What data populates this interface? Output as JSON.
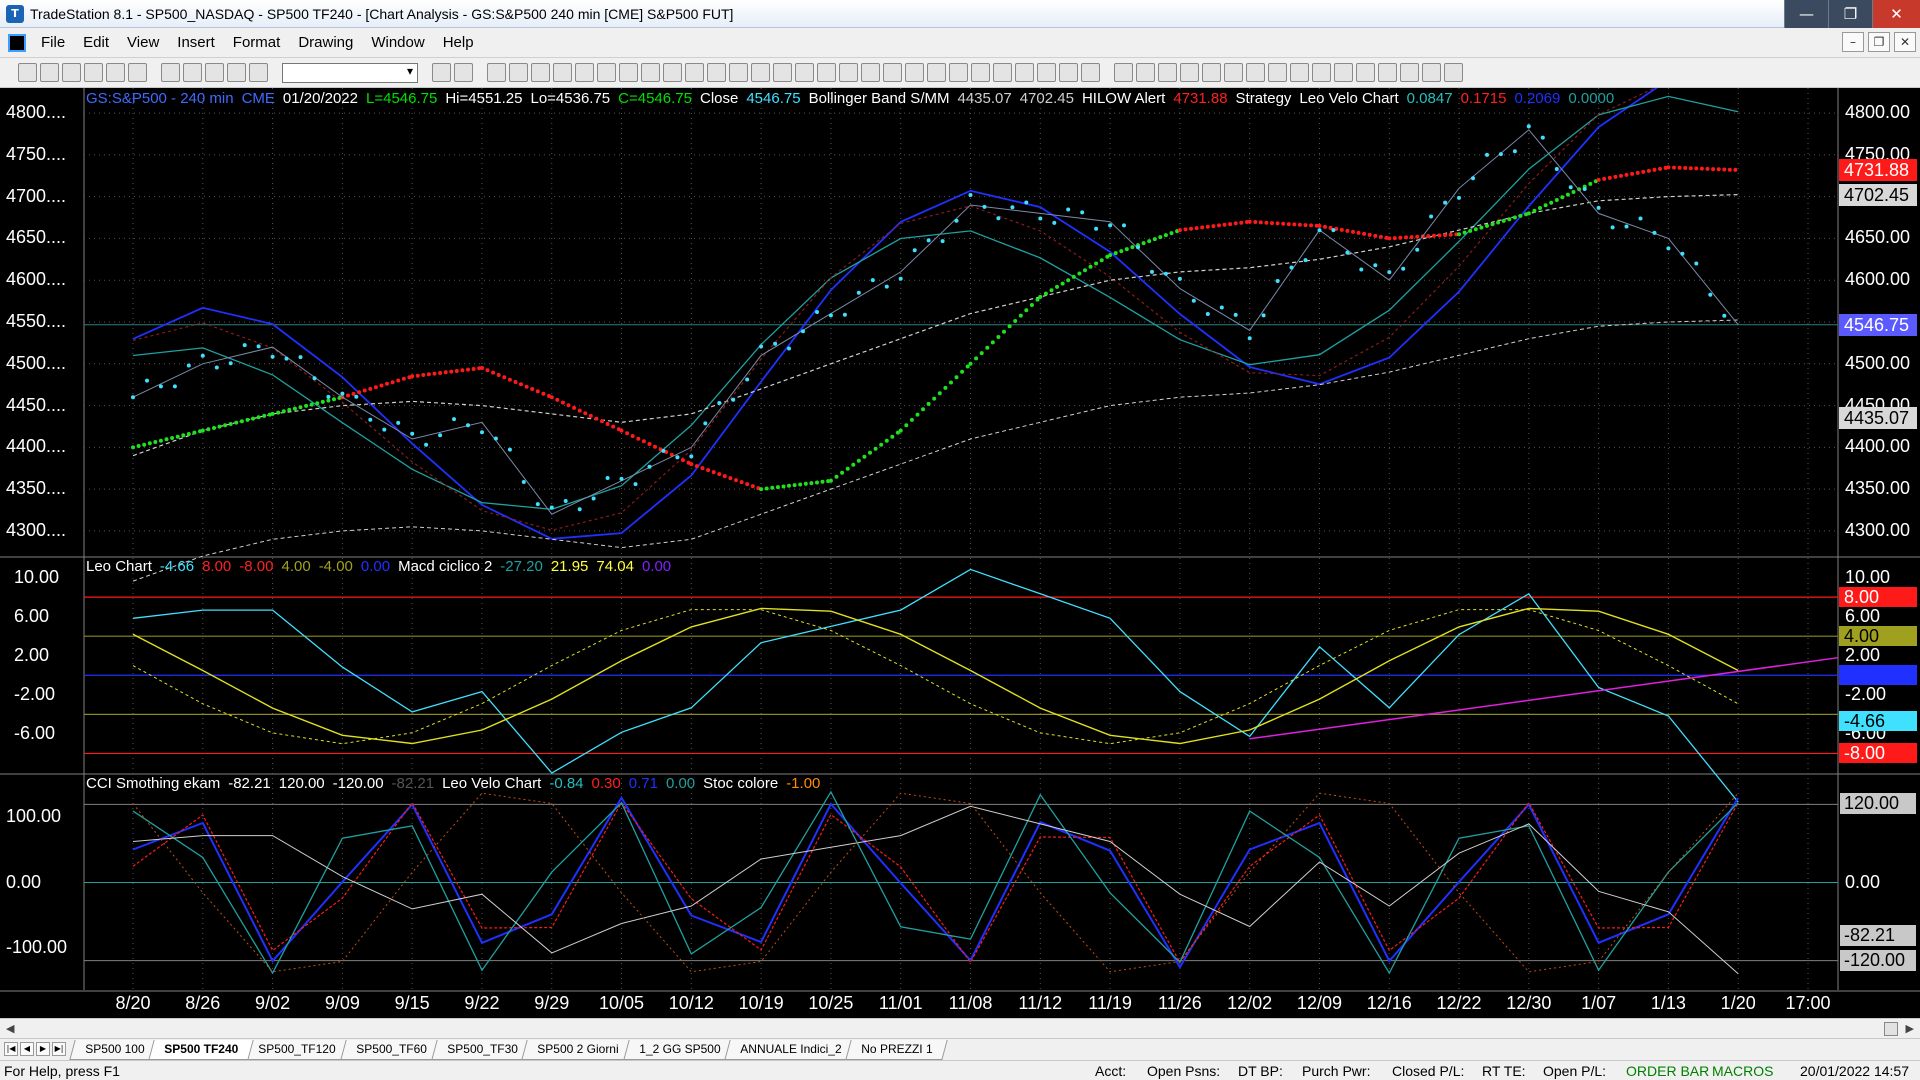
{
  "window": {
    "title": "TradeStation 8.1 - SP500_NASDAQ - SP500 TF240 - [Chart Analysis - GS:S&P500  240 min  [CME] S&P500 FUT]",
    "controls": [
      "—",
      "❐",
      "✕"
    ]
  },
  "menu": {
    "items": [
      "File",
      "Edit",
      "View",
      "Insert",
      "Format",
      "Drawing",
      "Window",
      "Help"
    ]
  },
  "panes": {
    "price": {
      "header": [
        {
          "text": "GS:S&P500 - 240 min",
          "color": "#3d6cff"
        },
        {
          "text": "CME",
          "color": "#3d6cff"
        },
        {
          "text": "01/20/2022",
          "color": "#ffffff"
        },
        {
          "text": "L=4546.75",
          "color": "#00e000"
        },
        {
          "text": "Hi=4551.25",
          "color": "#ffffff"
        },
        {
          "text": "Lo=4536.75",
          "color": "#ffffff"
        },
        {
          "text": "C=4546.75",
          "color": "#00e000"
        },
        {
          "text": "Close",
          "color": "#ffffff"
        },
        {
          "text": "4546.75",
          "color": "#40e0ff"
        },
        {
          "text": "Bollinger Band S/MM",
          "color": "#ffffff"
        },
        {
          "text": "4435.07",
          "color": "#cfcfcf"
        },
        {
          "text": "4702.45",
          "color": "#cfcfcf"
        },
        {
          "text": "HILOW Alert",
          "color": "#ffffff"
        },
        {
          "text": "4731.88",
          "color": "#ff2020"
        },
        {
          "text": "Strategy",
          "color": "#ffffff"
        },
        {
          "text": "Leo Velo Chart",
          "color": "#ffffff"
        },
        {
          "text": "0.0847",
          "color": "#20c0c0"
        },
        {
          "text": "0.1715",
          "color": "#ff2020"
        },
        {
          "text": "0.2069",
          "color": "#2030ff"
        },
        {
          "text": "0.0000",
          "color": "#20a0a0"
        }
      ],
      "left_axis": [
        "4800....",
        "4750....",
        "4700....",
        "4650....",
        "4600....",
        "4550....",
        "4500....",
        "4450....",
        "4400....",
        "4350....",
        "4300...."
      ],
      "right_axis": [
        "4800.00",
        "4750.00",
        "4700.00",
        "4650.00",
        "4600.00",
        "4550.00",
        "4500.00",
        "4450.00",
        "4400.00",
        "4350.00",
        "4300.00"
      ],
      "badges": [
        {
          "text": "4731.88",
          "bg": "#ff1a1a",
          "color": "#ffffff"
        },
        {
          "text": "4702.45",
          "bg": "#d8d8d8",
          "color": "#000000"
        },
        {
          "text": "4546.75",
          "bg": "#5a5aff",
          "color": "#ffffff"
        },
        {
          "text": "4435.07",
          "bg": "#d8d8d8",
          "color": "#000000"
        }
      ]
    },
    "leo": {
      "header": [
        {
          "text": "Leo Chart",
          "color": "#ffffff"
        },
        {
          "text": "-4.66",
          "color": "#40e0ff"
        },
        {
          "text": "8.00",
          "color": "#ff2020"
        },
        {
          "text": "-8.00",
          "color": "#ff2020"
        },
        {
          "text": "4.00",
          "color": "#a0a020"
        },
        {
          "text": "-4.00",
          "color": "#a0a020"
        },
        {
          "text": "0.00",
          "color": "#2030ff"
        },
        {
          "text": "Macd ciclico 2",
          "color": "#ffffff"
        },
        {
          "text": "-27.20",
          "color": "#20a0a0"
        },
        {
          "text": "21.95",
          "color": "#ffff40"
        },
        {
          "text": "74.04",
          "color": "#ffff40"
        },
        {
          "text": "0.00",
          "color": "#8020ff"
        }
      ],
      "left_axis": [
        "10.00",
        "6.00",
        "2.00",
        "-2.00",
        "-6.00"
      ],
      "right_axis": [
        "10.00",
        "6.00",
        "2.00",
        "-2.00",
        "-6.00"
      ],
      "badges": [
        {
          "text": "8.00",
          "bg": "#ff1a1a",
          "color": "#ffffff"
        },
        {
          "text": "4.00",
          "bg": "#a0a020",
          "color": "#000000"
        },
        {
          "text": "0.00",
          "bg": "#2030ff",
          "color": "#2030ff"
        },
        {
          "text": "-4.66",
          "bg": "#40e0ff",
          "color": "#000000"
        },
        {
          "text": "-8.00",
          "bg": "#ff1a1a",
          "color": "#ffffff"
        }
      ]
    },
    "cci": {
      "header": [
        {
          "text": "CCI Smothing ekam",
          "color": "#ffffff"
        },
        {
          "text": "-82.21",
          "color": "#ffffff"
        },
        {
          "text": "120.00",
          "color": "#ffffff"
        },
        {
          "text": "-120.00",
          "color": "#ffffff"
        },
        {
          "text": "-82.21",
          "color": "#555555"
        },
        {
          "text": "Leo Velo Chart",
          "color": "#ffffff"
        },
        {
          "text": "-0.84",
          "color": "#20c0c0"
        },
        {
          "text": "0.30",
          "color": "#ff2020"
        },
        {
          "text": "0.71",
          "color": "#2030ff"
        },
        {
          "text": "0.00",
          "color": "#20a0a0"
        },
        {
          "text": "Stoc colore",
          "color": "#ffffff"
        },
        {
          "text": "-1.00",
          "color": "#ff8c00"
        }
      ],
      "left_axis": [
        "100.00",
        "0.00",
        "-100.00"
      ],
      "right_axis": [
        "120.00",
        "0.00",
        "-82.21",
        "-120.00"
      ]
    }
  },
  "date_axis": [
    "8/20",
    "8/26",
    "9/02",
    "9/09",
    "9/15",
    "9/22",
    "9/29",
    "10/05",
    "10/12",
    "10/19",
    "10/25",
    "11/01",
    "11/08",
    "11/12",
    "11/19",
    "11/26",
    "12/02",
    "12/09",
    "12/16",
    "12/22",
    "12/30",
    "1/07",
    "1/13",
    "1/20",
    "17:00"
  ],
  "tabs": [
    "SP500 100",
    "SP500 TF240",
    "SP500_TF120",
    "SP500_TF60",
    "SP500_TF30",
    "SP500 2 Giorni",
    "1_2 GG SP500",
    "ANNUALE Indici_2",
    "No PREZZI 1"
  ],
  "active_tab": "SP500 TF240",
  "statusbar": {
    "help": "For Help, press F1",
    "acct": "Acct:",
    "open_psns": "Open Psns:",
    "dt_bp": "DT BP:",
    "purch_pwr": "Purch Pwr:",
    "closed_pl": "Closed P/L:",
    "rt_te": "RT TE:",
    "open_pl": "Open P/L:",
    "order_bar": "ORDER BAR",
    "macros": "MACROS",
    "datetime": "20/01/2022 14:57"
  },
  "colors": {
    "price_dots": "#40e0ff",
    "band_red": "#ff1a1a",
    "band_green": "#20e020",
    "ma_white": "#d0d0d0",
    "blue_line": "#2030ff",
    "teal_line": "#20a0a0",
    "yellow_line": "#e0e020",
    "magenta_trend": "#e020e0"
  },
  "chart_data": {
    "type": "line",
    "title": "GS:S&P500 - 240 min",
    "x": [
      "8/20",
      "8/26",
      "9/02",
      "9/09",
      "9/15",
      "9/22",
      "9/29",
      "10/05",
      "10/12",
      "10/19",
      "10/25",
      "11/01",
      "11/08",
      "11/12",
      "11/19",
      "11/26",
      "12/02",
      "12/09",
      "12/16",
      "12/22",
      "12/30",
      "1/07",
      "1/13",
      "1/20"
    ],
    "series": [
      {
        "name": "Close",
        "values": [
          4460,
          4500,
          4520,
          4460,
          4410,
          4430,
          4320,
          4360,
          4400,
          4510,
          4560,
          4610,
          4690,
          4680,
          4670,
          4590,
          4540,
          4660,
          4600,
          4710,
          4780,
          4680,
          4650,
          4546.75
        ]
      },
      {
        "name": "Bollinger Band S/MM",
        "values": [
          4390,
          4420,
          4440,
          4450,
          4455,
          4450,
          4440,
          4430,
          4440,
          4470,
          4500,
          4530,
          4560,
          4580,
          4600,
          4610,
          4615,
          4625,
          4640,
          4660,
          4680,
          4695,
          4700,
          4702.45
        ]
      },
      {
        "name": "HILOW Alert",
        "values": [
          4400,
          4420,
          4440,
          4460,
          4485,
          4495,
          4460,
          4420,
          4380,
          4350,
          4360,
          4420,
          4500,
          4580,
          4630,
          4660,
          4670,
          4665,
          4650,
          4655,
          4680,
          4720,
          4735,
          4731.88
        ]
      }
    ],
    "ylim": [
      4270,
      4830
    ],
    "leo_chart": {
      "ylim": [
        -10,
        12
      ],
      "levels": [
        8,
        4,
        0,
        -4,
        -8
      ],
      "last": -4.66
    },
    "cci": {
      "ylim": [
        -165,
        165
      ],
      "levels": [
        120,
        0,
        -120
      ],
      "last": -82.21
    }
  }
}
